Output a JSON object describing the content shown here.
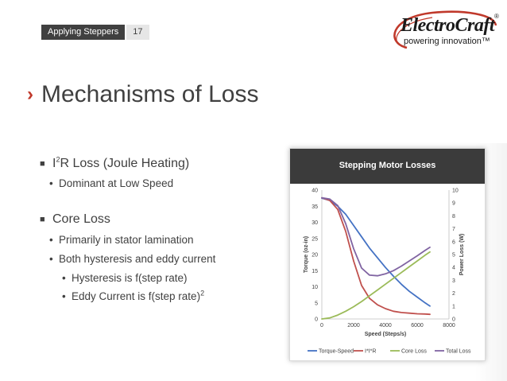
{
  "header": {
    "section": "Applying Steppers",
    "page": "17"
  },
  "logo": {
    "name": "ElectroCraft",
    "tagline": "powering innovation™",
    "reg": "®"
  },
  "title": "Mechanisms of Loss",
  "bullets": {
    "joule_pre": "I",
    "joule_sup": "2",
    "joule_post": "R Loss (Joule Heating)",
    "joule_sub": "Dominant at Low Speed",
    "core": "Core Loss",
    "core_sub1": "Primarily in stator lamination",
    "core_sub2": "Both hysteresis and eddy current",
    "hyst": "Hysteresis is f(step rate)",
    "eddy_pre": "Eddy Current is f(step rate)",
    "eddy_sup": "2"
  },
  "chart_data": {
    "type": "line",
    "title": "Stepping Motor Losses",
    "xlabel": "Speed (Steps/s)",
    "ylabel": "Torque (oz-in)",
    "y2label": "Power Loss (W)",
    "xlim": [
      0,
      8000
    ],
    "ylim": [
      0,
      40
    ],
    "y2lim": [
      0,
      10
    ],
    "xticks": [
      0,
      2000,
      4000,
      6000,
      8000
    ],
    "yticks": [
      0,
      5,
      10,
      15,
      20,
      25,
      30,
      35,
      40
    ],
    "y2ticks": [
      0,
      1,
      2,
      3,
      4,
      5,
      6,
      7,
      8,
      9,
      10
    ],
    "grid": false,
    "legend": "bottom",
    "series": [
      {
        "name": "Torque-Speed",
        "axis": "left",
        "color": "#4472c4",
        "x": [
          0,
          500,
          1000,
          1500,
          2000,
          2500,
          3000,
          3500,
          4000,
          4500,
          5000,
          5500,
          6000,
          6500,
          6800
        ],
        "y": [
          37.5,
          36.8,
          35,
          32.5,
          29,
          25.5,
          22,
          19,
          16,
          13.3,
          10.8,
          8.6,
          6.8,
          5,
          4
        ]
      },
      {
        "name": "I*I*R",
        "axis": "right",
        "color": "#c0504d",
        "x": [
          0,
          500,
          1000,
          1500,
          2000,
          2500,
          3000,
          3500,
          4000,
          4500,
          5000,
          5500,
          6000,
          6500,
          6800
        ],
        "y": [
          9.4,
          9.2,
          8.5,
          6.8,
          4.5,
          2.6,
          1.6,
          1.1,
          0.8,
          0.6,
          0.5,
          0.45,
          0.4,
          0.38,
          0.36
        ]
      },
      {
        "name": "Core Loss",
        "axis": "right",
        "color": "#9bbb59",
        "x": [
          0,
          500,
          1000,
          1500,
          2000,
          2500,
          3000,
          3500,
          4000,
          4500,
          5000,
          5500,
          6000,
          6500,
          6800
        ],
        "y": [
          0,
          0.08,
          0.3,
          0.6,
          0.95,
          1.35,
          1.8,
          2.25,
          2.7,
          3.15,
          3.6,
          4.05,
          4.5,
          4.95,
          5.2
        ]
      },
      {
        "name": "Total Loss",
        "axis": "right",
        "color": "#8064a2",
        "x": [
          0,
          500,
          1000,
          1500,
          2000,
          2500,
          3000,
          3500,
          4000,
          4500,
          5000,
          5500,
          6000,
          6500,
          6800
        ],
        "y": [
          9.4,
          9.3,
          8.8,
          7.4,
          5.45,
          3.95,
          3.4,
          3.35,
          3.5,
          3.75,
          4.1,
          4.5,
          4.9,
          5.33,
          5.56
        ]
      }
    ]
  }
}
